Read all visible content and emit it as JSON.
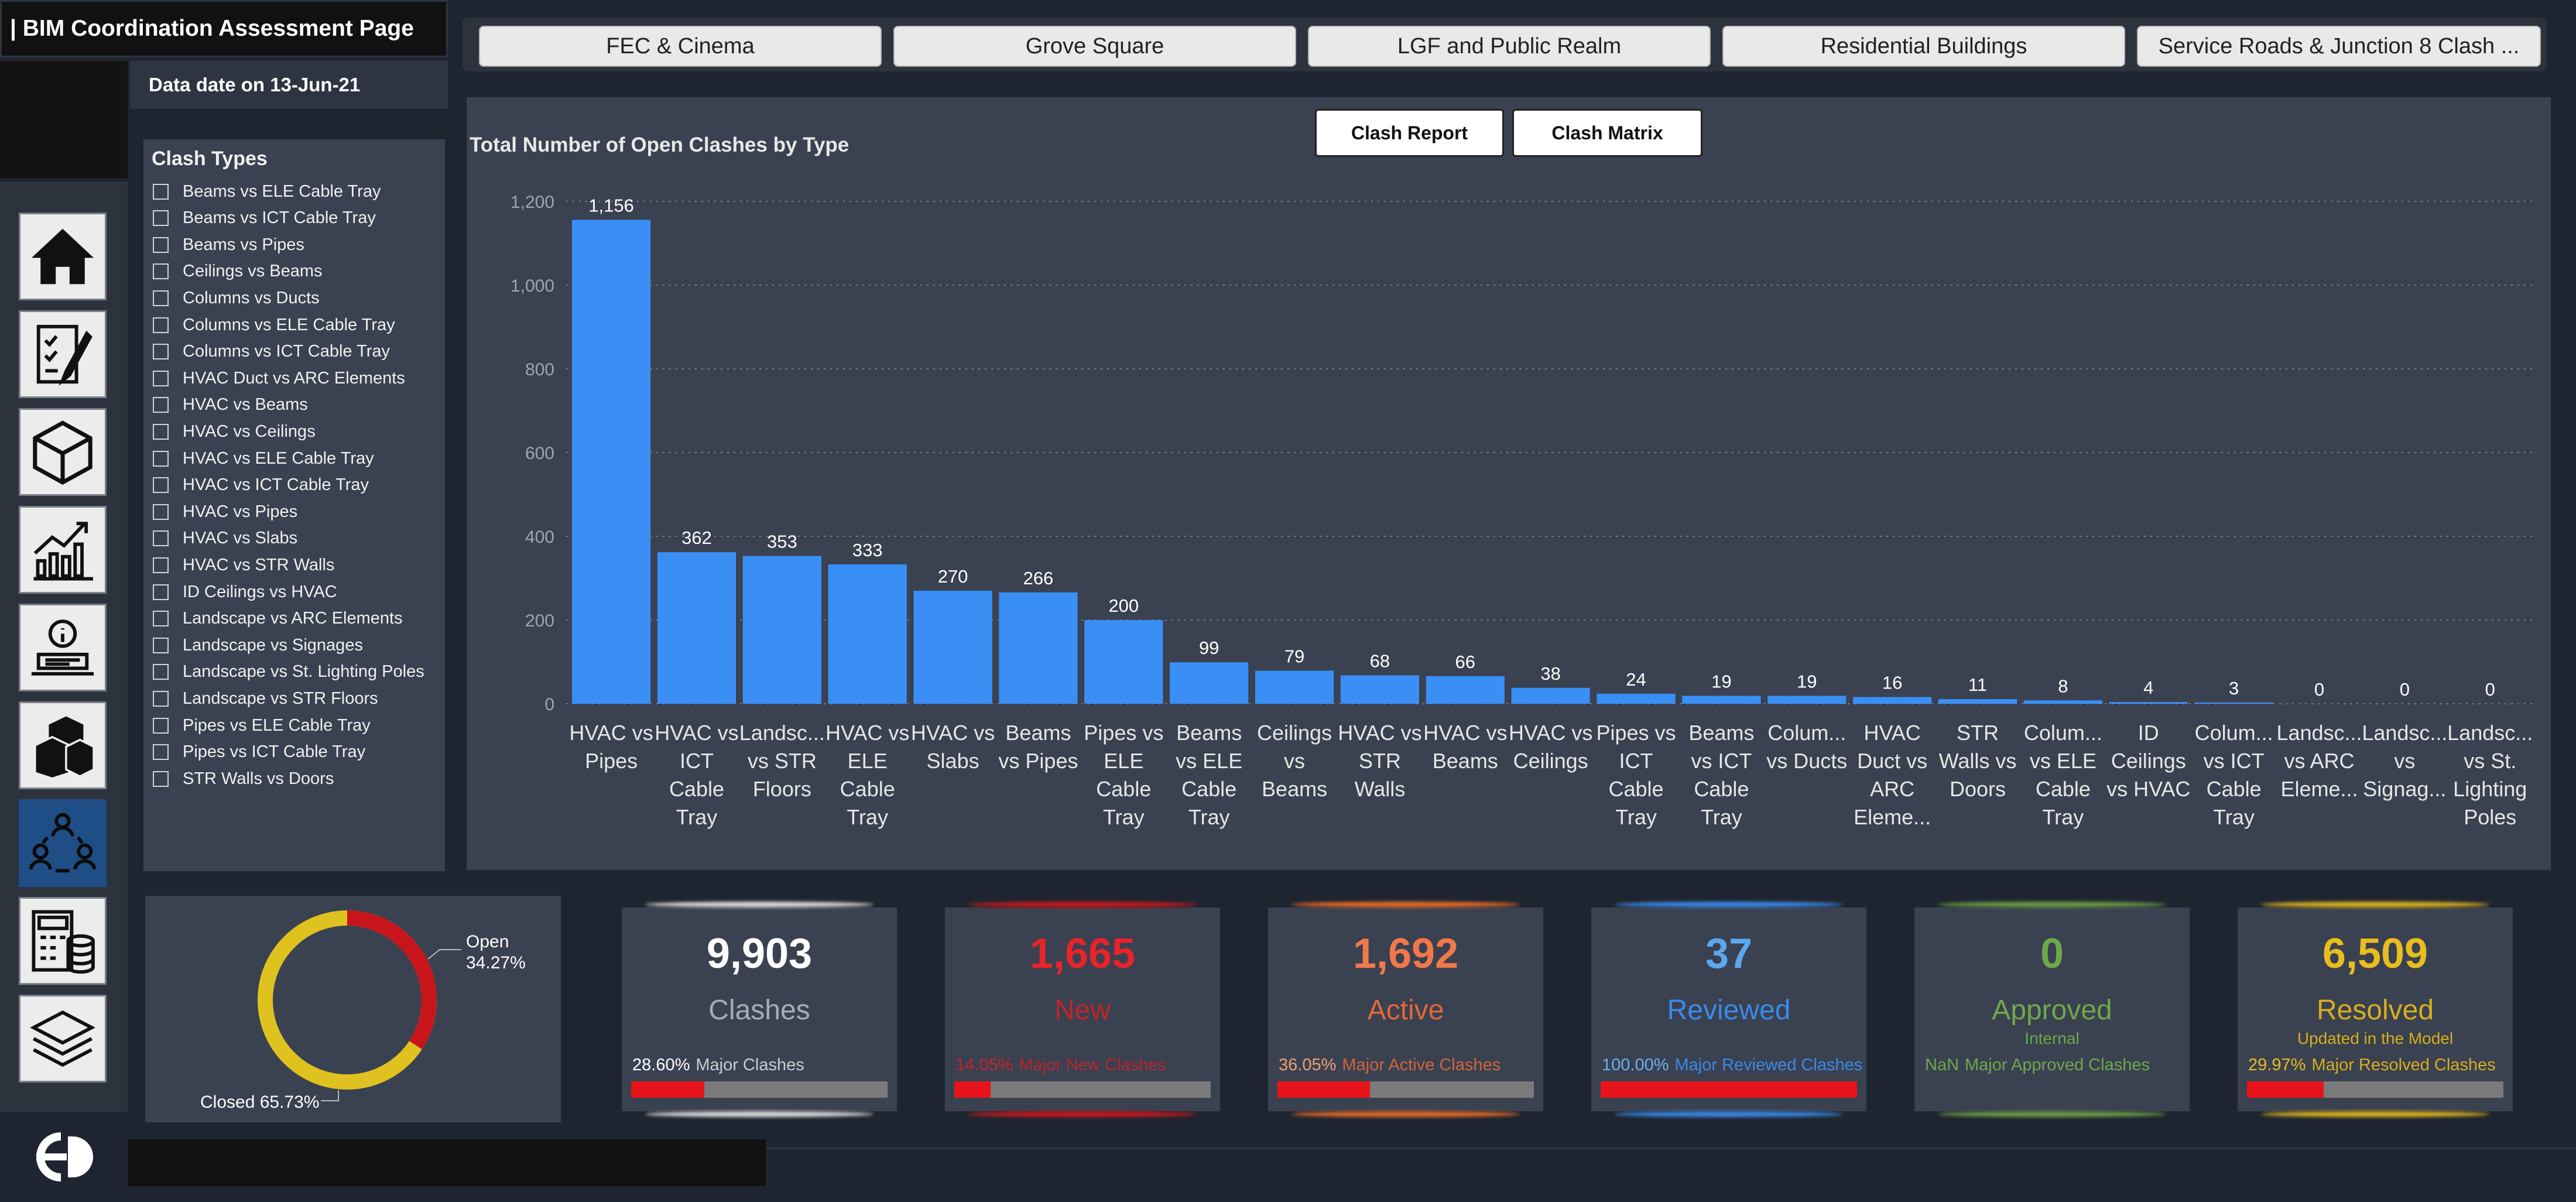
{
  "app": {
    "title": "| BIM Coordination Assessment Page",
    "data_date": "Data date on 13-Jun-21"
  },
  "tabs": [
    {
      "label": "FEC & Cinema"
    },
    {
      "label": "Grove Square"
    },
    {
      "label": "LGF and Public Realm"
    },
    {
      "label": "Residential Buildings"
    },
    {
      "label": "Service Roads & Junction 8 Clash ..."
    }
  ],
  "nav": {
    "items": [
      {
        "icon": "home-icon"
      },
      {
        "icon": "checklist-icon"
      },
      {
        "icon": "cube-icon"
      },
      {
        "icon": "growth-chart-icon"
      },
      {
        "icon": "info-laptop-icon"
      },
      {
        "icon": "buildings-icon"
      },
      {
        "icon": "coordination-team-icon",
        "active": true
      },
      {
        "icon": "calculator-database-icon"
      },
      {
        "icon": "layers-icon"
      }
    ],
    "logo": "ed-logo-icon"
  },
  "slicer": {
    "title": "Clash Types",
    "items": [
      "Beams vs ELE Cable Tray",
      "Beams vs ICT Cable Tray",
      "Beams vs Pipes",
      "Ceilings vs Beams",
      "Columns vs Ducts",
      "Columns vs ELE Cable Tray",
      "Columns vs ICT Cable Tray",
      "HVAC Duct vs ARC Elements",
      "HVAC vs Beams",
      "HVAC vs Ceilings",
      "HVAC vs ELE Cable Tray",
      "HVAC vs ICT Cable Tray",
      "HVAC vs Pipes",
      "HVAC vs Slabs",
      "HVAC vs STR Walls",
      "ID Ceilings vs HVAC",
      "Landscape vs ARC Elements",
      "Landscape vs Signages",
      "Landscape vs St. Lighting Poles",
      "Landscape vs STR Floors",
      "Pipes vs ELE Cable Tray",
      "Pipes vs ICT Cable Tray",
      "STR Walls vs Doors"
    ]
  },
  "buttons": {
    "clash_report": "Clash Report",
    "clash_matrix": "Clash Matrix"
  },
  "chart_data": {
    "type": "bar",
    "title": "Total Number of Open Clashes by Type",
    "color": "#3a8ff5",
    "ylim": [
      0,
      1200
    ],
    "yticks": [
      0,
      200,
      400,
      600,
      800,
      1000,
      1200
    ],
    "ytick_labels": [
      "0",
      "200",
      "400",
      "600",
      "800",
      "1,000",
      "1,200"
    ],
    "grid": true,
    "categories": [
      [
        "HVAC vs",
        "Pipes"
      ],
      [
        "HVAC vs",
        "ICT",
        "Cable",
        "Tray"
      ],
      [
        "Landsc...",
        "vs STR",
        "Floors"
      ],
      [
        "HVAC vs",
        "ELE",
        "Cable",
        "Tray"
      ],
      [
        "HVAC vs",
        "Slabs"
      ],
      [
        "Beams",
        "vs Pipes"
      ],
      [
        "Pipes vs",
        "ELE",
        "Cable",
        "Tray"
      ],
      [
        "Beams",
        "vs ELE",
        "Cable",
        "Tray"
      ],
      [
        "Ceilings",
        "vs",
        "Beams"
      ],
      [
        "HVAC vs",
        "STR",
        "Walls"
      ],
      [
        "HVAC vs",
        "Beams"
      ],
      [
        "HVAC vs",
        "Ceilings"
      ],
      [
        "Pipes vs",
        "ICT",
        "Cable",
        "Tray"
      ],
      [
        "Beams",
        "vs ICT",
        "Cable",
        "Tray"
      ],
      [
        "Colum...",
        "vs Ducts"
      ],
      [
        "HVAC",
        "Duct vs",
        "ARC",
        "Eleme..."
      ],
      [
        "STR",
        "Walls vs",
        "Doors"
      ],
      [
        "Colum...",
        "vs ELE",
        "Cable",
        "Tray"
      ],
      [
        "ID",
        "Ceilings",
        "vs HVAC"
      ],
      [
        "Colum...",
        "vs ICT",
        "Cable",
        "Tray"
      ],
      [
        "Landsc...",
        "vs ARC",
        "Eleme..."
      ],
      [
        "Landsc...",
        "vs",
        "Signag..."
      ],
      [
        "Landsc...",
        "vs St.",
        "Lighting",
        "Poles"
      ]
    ],
    "values": [
      1156,
      362,
      353,
      333,
      270,
      266,
      200,
      99,
      79,
      68,
      66,
      38,
      24,
      19,
      19,
      16,
      11,
      8,
      4,
      3,
      0,
      0,
      0
    ],
    "value_labels": [
      "1,156",
      "362",
      "353",
      "333",
      "270",
      "266",
      "200",
      "99",
      "79",
      "68",
      "66",
      "38",
      "24",
      "19",
      "19",
      "16",
      "11",
      "8",
      "4",
      "3",
      "0",
      "0",
      "0"
    ]
  },
  "donut": {
    "segments": [
      {
        "label": "Open",
        "percent_label": "34.27%",
        "value": 34.27,
        "color": "#c8151b"
      },
      {
        "label": "Closed",
        "percent_label": "65.73%",
        "value": 65.73,
        "color": "#dfc21f"
      }
    ],
    "closed_text": "Closed 65.73%"
  },
  "kpis": [
    {
      "value": "9,903",
      "label": "Clashes",
      "sub": "",
      "pct": "28.60%",
      "pct_label": "Major Clashes",
      "fraction": 0.286,
      "color_val": "#ffffff",
      "color_label": "#a8adb5",
      "color_pct": "#ffffff",
      "color_pct_label": "#c8ccd2",
      "glow": "#d8d8d8"
    },
    {
      "value": "1,665",
      "label": "New",
      "sub": "",
      "pct": "14.05%",
      "pct_label": "Major New Clashes",
      "fraction": 0.1405,
      "color_val": "#e8232a",
      "color_label": "#c4232a",
      "color_pct": "#c4232a",
      "color_pct_label": "#b5272d",
      "glow": "#c4181e"
    },
    {
      "value": "1,692",
      "label": "Active",
      "sub": "",
      "pct": "36.05%",
      "pct_label": "Major Active Clashes",
      "fraction": 0.3605,
      "color_val": "#f0784a",
      "color_label": "#e2673c",
      "color_pct": "#f0a070",
      "color_pct_label": "#d2643e",
      "glow": "#e06a28"
    },
    {
      "value": "37",
      "label": "Reviewed",
      "sub": "",
      "pct": "100.00%",
      "pct_label": "Major Reviewed Clashes",
      "fraction": 1.0,
      "color_val": "#5aa8f0",
      "color_label": "#3a8ae8",
      "color_pct": "#6ab0f0",
      "color_pct_label": "#3a8ae8",
      "glow": "#3a86e0"
    },
    {
      "value": "0",
      "label": "Approved",
      "sub": "Internal",
      "pct": "NaN",
      "pct_label": "Major Approved Clashes",
      "fraction": 0,
      "color_val": "#6ea84a",
      "color_label": "#6ea84a",
      "color_pct": "#6ea84a",
      "color_pct_label": "#6ea84a",
      "glow": "#6a9a48"
    },
    {
      "value": "6,509",
      "label": "Resolved",
      "sub": "Updated in the Model",
      "pct": "29.97%",
      "pct_label": "Major Resolved Clashes",
      "fraction": 0.2997,
      "color_val": "#e8bd1e",
      "color_label": "#d8ae1c",
      "color_pct": "#e8bd1e",
      "color_pct_label": "#d8ae1c",
      "glow": "#d8b01e"
    }
  ]
}
